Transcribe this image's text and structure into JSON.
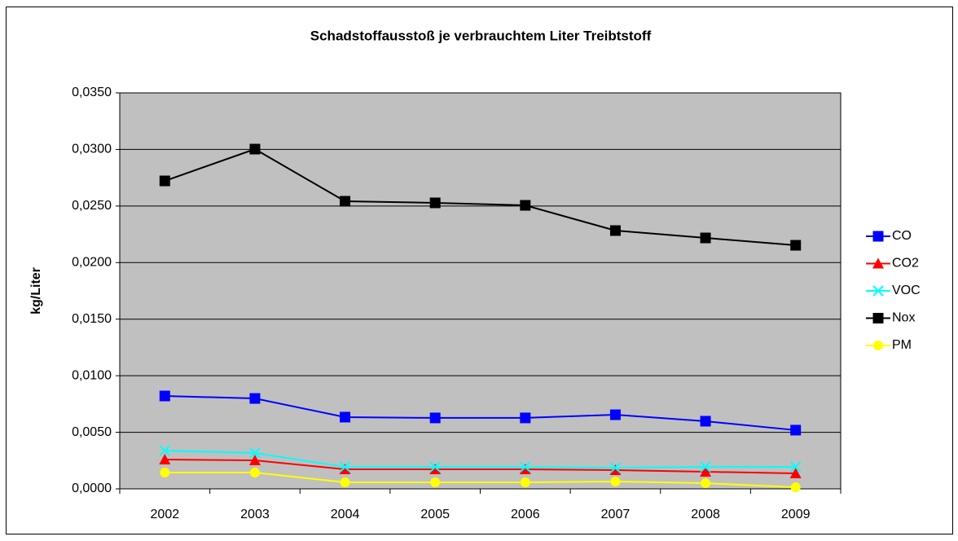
{
  "chart_data": {
    "type": "line",
    "title": "Schadstoffausstoß je verbrauchtem Liter Treibtstoff",
    "y_label": "kg/Liter",
    "categories": [
      "2002",
      "2003",
      "2004",
      "2005",
      "2006",
      "2007",
      "2008",
      "2009"
    ],
    "series": [
      {
        "name": "CO",
        "color": "#0000ff",
        "marker": "square",
        "values": [
          0.00821,
          0.00799,
          0.00634,
          0.00627,
          0.00627,
          0.00655,
          0.00598,
          0.00519
        ]
      },
      {
        "name": "CO2",
        "color": "#ff0000",
        "marker": "triangle",
        "values": [
          0.00259,
          0.00252,
          0.00173,
          0.00173,
          0.00173,
          0.00166,
          0.00151,
          0.00137
        ]
      },
      {
        "name": "VOC",
        "color": "#00ffff",
        "marker": "cross",
        "values": [
          0.00338,
          0.00317,
          0.00194,
          0.00194,
          0.00194,
          0.00187,
          0.00194,
          0.00194
        ]
      },
      {
        "name": "Nox",
        "color": "#000000",
        "marker": "square",
        "values": [
          0.02722,
          0.03003,
          0.02542,
          0.02528,
          0.02506,
          0.02283,
          0.02218,
          0.02153
        ]
      },
      {
        "name": "PM",
        "color": "#ffff00",
        "marker": "circle",
        "values": [
          0.00144,
          0.00144,
          0.00058,
          0.00058,
          0.00058,
          0.00065,
          0.0005,
          0.00014
        ]
      }
    ],
    "ylim": [
      0,
      0.035
    ],
    "yticks": [
      {
        "value": 0,
        "label": "0,0000"
      },
      {
        "value": 0.005,
        "label": "0,0050"
      },
      {
        "value": 0.01,
        "label": "0,0100"
      },
      {
        "value": 0.015,
        "label": "0,0150"
      },
      {
        "value": 0.02,
        "label": "0,0200"
      },
      {
        "value": 0.025,
        "label": "0,0250"
      },
      {
        "value": 0.03,
        "label": "0,0300"
      },
      {
        "value": 0.035,
        "label": "0,0350"
      }
    ],
    "grid": true,
    "legend": "right",
    "plot_background": "#c0c0c0"
  }
}
